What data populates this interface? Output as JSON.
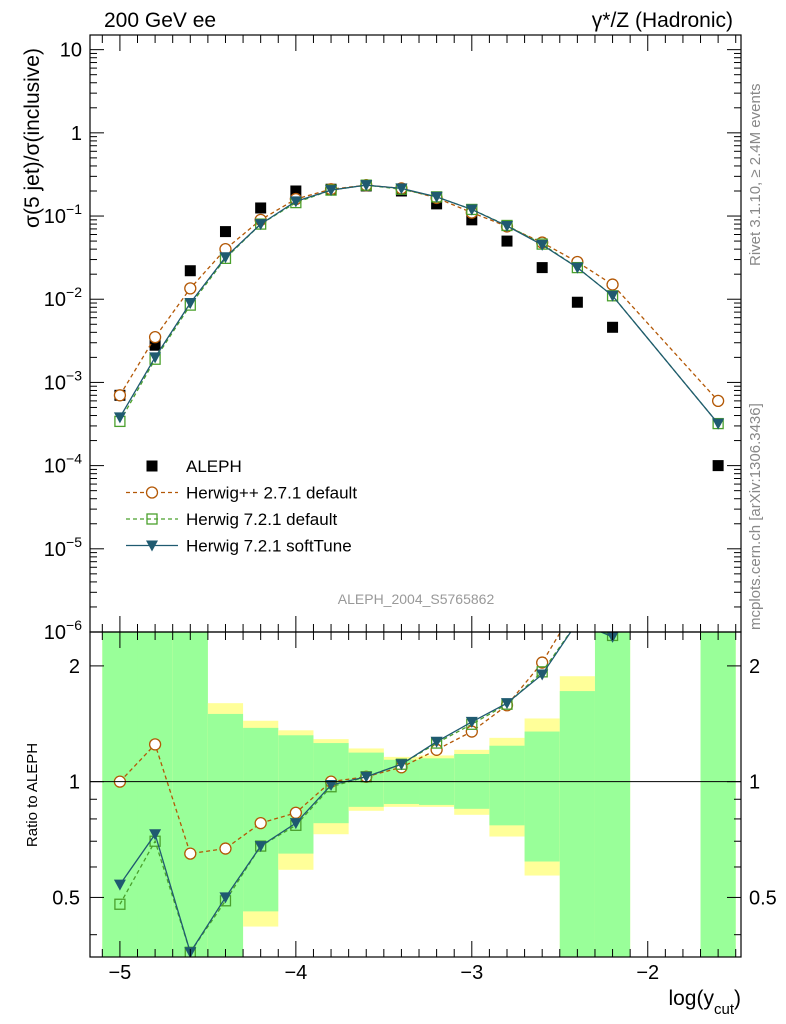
{
  "header": {
    "left_label": "200 GeV ee",
    "right_label": "γ*/Z (Hadronic)"
  },
  "side_notes": {
    "rivet": "Rivet 3.1.10, ≥ 2.4M events",
    "mcplots": "mcplots.cern.ch [arXiv:1306.3436]"
  },
  "watermark": "ALEPH_2004_S5765862",
  "colors": {
    "aleph": "#000000",
    "herwigpp": "#b35806",
    "herwig721": "#4aa02c",
    "softtune": "#1f5a70",
    "band_inner": "#99ff99",
    "band_outer": "#ffff99"
  },
  "chart_data": [
    {
      "type": "scatter",
      "panel": "main",
      "ylabel": "σ(5 jet)/σ(inclusive)",
      "yscale": "log",
      "ylim": [
        1e-06,
        15
      ],
      "xlim": [
        -5.17,
        -1.47
      ],
      "y_ticks": [
        1e-06,
        1e-05,
        0.0001,
        0.001,
        0.01,
        0.1,
        1,
        10
      ],
      "y_tick_labels": [
        {
          "m": "10",
          "e": "−6"
        },
        {
          "m": "10",
          "e": "−5"
        },
        {
          "m": "10",
          "e": "−4"
        },
        {
          "m": "10",
          "e": "−3"
        },
        {
          "m": "10",
          "e": "−2"
        },
        {
          "m": "10",
          "e": "−1"
        },
        {
          "m": "1",
          "e": ""
        },
        {
          "m": "10",
          "e": ""
        }
      ],
      "legend_position": "bottom-left",
      "series": [
        {
          "name": "ALEPH",
          "style": "square",
          "x": [
            -5.0,
            -4.8,
            -4.6,
            -4.4,
            -4.2,
            -4.0,
            -3.8,
            -3.6,
            -3.4,
            -3.2,
            -3.0,
            -2.8,
            -2.6,
            -2.4,
            -2.2,
            -1.6
          ],
          "y": [
            0.0007,
            0.0028,
            0.022,
            0.065,
            0.125,
            0.2,
            0.21,
            0.23,
            0.2,
            0.14,
            0.09,
            0.05,
            0.024,
            0.0092,
            0.0046,
            0.0001
          ]
        },
        {
          "name": "Herwig++ 2.7.1 default",
          "style": "circle-dashed",
          "x": [
            -5.0,
            -4.8,
            -4.6,
            -4.4,
            -4.2,
            -4.0,
            -3.8,
            -3.6,
            -3.4,
            -3.2,
            -3.0,
            -2.8,
            -2.6,
            -2.4,
            -2.2,
            -1.6
          ],
          "y": [
            0.0007,
            0.0035,
            0.0135,
            0.04,
            0.09,
            0.16,
            0.21,
            0.235,
            0.215,
            0.165,
            0.11,
            0.075,
            0.048,
            0.028,
            0.015,
            0.0006
          ]
        },
        {
          "name": "Herwig 7.2.1 default",
          "style": "opensquare-dashed",
          "x": [
            -5.0,
            -4.8,
            -4.6,
            -4.4,
            -4.2,
            -4.0,
            -3.8,
            -3.6,
            -3.4,
            -3.2,
            -3.0,
            -2.8,
            -2.6,
            -2.4,
            -2.2,
            -1.6
          ],
          "y": [
            0.00034,
            0.0019,
            0.0085,
            0.031,
            0.08,
            0.145,
            0.205,
            0.235,
            0.21,
            0.17,
            0.12,
            0.077,
            0.046,
            0.024,
            0.011,
            0.00032
          ]
        },
        {
          "name": "Herwig 7.2.1 softTune",
          "style": "triangle-solid",
          "x": [
            -5.0,
            -4.8,
            -4.6,
            -4.4,
            -4.2,
            -4.0,
            -3.8,
            -3.6,
            -3.4,
            -3.2,
            -3.0,
            -2.8,
            -2.6,
            -2.4,
            -2.2,
            -1.6
          ],
          "y": [
            0.00038,
            0.002,
            0.009,
            0.032,
            0.08,
            0.15,
            0.205,
            0.235,
            0.215,
            0.17,
            0.12,
            0.076,
            0.045,
            0.024,
            0.011,
            0.00032
          ]
        }
      ]
    },
    {
      "type": "line",
      "panel": "ratio",
      "ylabel": "Ratio to ALEPH",
      "xlabel": {
        "base": "log(y",
        "sub": "cut",
        "close": ")"
      },
      "yscale": "log",
      "ylim": [
        0.35,
        2.45
      ],
      "xlim": [
        -5.17,
        -1.47
      ],
      "x_ticks": [
        -5,
        -4,
        -3,
        -2
      ],
      "x_tick_labels": [
        "−5",
        "−4",
        "−3",
        "−2"
      ],
      "y_ticks": [
        0.5,
        1,
        2
      ],
      "y_tick_labels": [
        "0.5",
        "1",
        "2"
      ],
      "bands": {
        "edges": [
          -5.1,
          -4.9,
          -4.7,
          -4.5,
          -4.3,
          -4.1,
          -3.9,
          -3.7,
          -3.5,
          -3.3,
          -3.1,
          -2.9,
          -2.7,
          -2.5,
          -2.3,
          -2.1,
          -1.7,
          -1.5
        ],
        "inner_lo": [
          0.35,
          0.35,
          0.35,
          0.35,
          0.46,
          0.65,
          0.78,
          0.86,
          0.875,
          0.87,
          0.85,
          0.77,
          0.62,
          0.35,
          0.35,
          null,
          0.35
        ],
        "inner_hi": [
          2.45,
          2.45,
          2.45,
          1.5,
          1.38,
          1.32,
          1.26,
          1.19,
          1.14,
          1.15,
          1.18,
          1.24,
          1.35,
          1.72,
          2.45,
          null,
          2.45
        ],
        "outer_lo": [
          0.35,
          0.35,
          0.35,
          0.35,
          0.42,
          0.59,
          0.73,
          0.84,
          0.86,
          0.86,
          0.82,
          0.72,
          0.57,
          0.35,
          0.35,
          null,
          0.35
        ],
        "outer_hi": [
          2.45,
          2.45,
          2.45,
          1.6,
          1.44,
          1.36,
          1.29,
          1.22,
          1.16,
          1.17,
          1.21,
          1.3,
          1.46,
          1.88,
          2.45,
          null,
          2.45
        ]
      },
      "series": [
        {
          "name": "Herwig++ 2.7.1 default",
          "x": [
            -5.0,
            -4.8,
            -4.6,
            -4.4,
            -4.2,
            -4.0,
            -3.8,
            -3.6,
            -3.4,
            -3.2,
            -3.0,
            -2.8,
            -2.6,
            -2.4
          ],
          "y": [
            1.0,
            1.25,
            0.65,
            0.67,
            0.78,
            0.83,
            1.0,
            1.03,
            1.09,
            1.21,
            1.35,
            1.58,
            2.04,
            2.9
          ]
        },
        {
          "name": "Herwig 7.2.1 default",
          "x": [
            -5.0,
            -4.8,
            -4.6,
            -4.4,
            -4.2,
            -4.0,
            -3.8,
            -3.6,
            -3.4,
            -3.2,
            -3.0,
            -2.8,
            -2.6,
            -2.4,
            -2.2
          ],
          "y": [
            0.48,
            0.7,
            0.36,
            0.49,
            0.68,
            0.77,
            0.97,
            1.03,
            1.11,
            1.26,
            1.41,
            1.59,
            1.93,
            2.6,
            2.4
          ]
        },
        {
          "name": "Herwig 7.2.1 softTune",
          "x": [
            -5.0,
            -4.8,
            -4.6,
            -4.4,
            -4.2,
            -4.0,
            -3.8,
            -3.6,
            -3.4,
            -3.2,
            -3.0,
            -2.8,
            -2.6,
            -2.4,
            -2.2
          ],
          "y": [
            0.54,
            0.73,
            0.36,
            0.5,
            0.68,
            0.78,
            0.98,
            1.03,
            1.11,
            1.27,
            1.43,
            1.6,
            1.9,
            2.6,
            2.38
          ]
        }
      ]
    }
  ]
}
